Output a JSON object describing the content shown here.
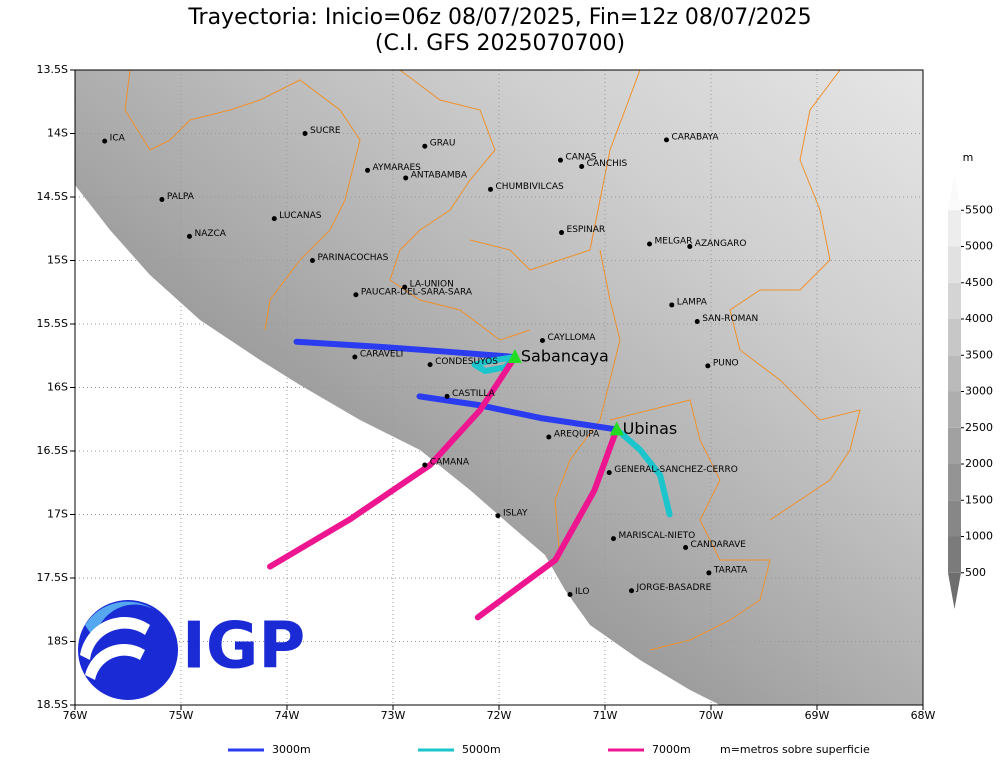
{
  "title": "Trayectoria: Inicio=06z 08/07/2025, Fin=12z 08/07/2025",
  "subtitle": "(C.I. GFS 2025070700)",
  "map": {
    "xlim": [
      -76,
      -68
    ],
    "ylim": [
      -18.5,
      -13.5
    ],
    "xticks": [
      {
        "value": -76,
        "label": "76W"
      },
      {
        "value": -75,
        "label": "75W"
      },
      {
        "value": -74,
        "label": "74W"
      },
      {
        "value": -73,
        "label": "73W"
      },
      {
        "value": -72,
        "label": "72W"
      },
      {
        "value": -71,
        "label": "71W"
      },
      {
        "value": -70,
        "label": "70W"
      },
      {
        "value": -69,
        "label": "69W"
      },
      {
        "value": -68,
        "label": "68W"
      }
    ],
    "yticks": [
      {
        "value": -13.5,
        "label": "13.5S"
      },
      {
        "value": -14,
        "label": "14S"
      },
      {
        "value": -14.5,
        "label": "14.5S"
      },
      {
        "value": -15,
        "label": "15S"
      },
      {
        "value": -15.5,
        "label": "15.5S"
      },
      {
        "value": -16,
        "label": "16S"
      },
      {
        "value": -16.5,
        "label": "16.5S"
      },
      {
        "value": -17,
        "label": "17S"
      },
      {
        "value": -17.5,
        "label": "17.5S"
      },
      {
        "value": -18,
        "label": "18S"
      },
      {
        "value": -18.5,
        "label": "18.5S"
      }
    ],
    "places": [
      {
        "name": "ICA",
        "lon": -75.72,
        "lat": -14.06
      },
      {
        "name": "SUCRE",
        "lon": -73.83,
        "lat": -14.0
      },
      {
        "name": "GRAU",
        "lon": -72.7,
        "lat": -14.1
      },
      {
        "name": "AYMARAES",
        "lon": -73.24,
        "lat": -14.29
      },
      {
        "name": "ANTABAMBA",
        "lon": -72.88,
        "lat": -14.35
      },
      {
        "name": "CANAS",
        "lon": -71.42,
        "lat": -14.21
      },
      {
        "name": "CANCHIS",
        "lon": -71.22,
        "lat": -14.26
      },
      {
        "name": "CARABAYA",
        "lon": -70.42,
        "lat": -14.05
      },
      {
        "name": "CHUMBIVILCAS",
        "lon": -72.08,
        "lat": -14.44
      },
      {
        "name": "PALPA",
        "lon": -75.18,
        "lat": -14.52
      },
      {
        "name": "LUCANAS",
        "lon": -74.12,
        "lat": -14.67
      },
      {
        "name": "NAZCA",
        "lon": -74.92,
        "lat": -14.81
      },
      {
        "name": "ESPINAR",
        "lon": -71.41,
        "lat": -14.78
      },
      {
        "name": "MELGAR",
        "lon": -70.58,
        "lat": -14.87
      },
      {
        "name": "AZANGARO",
        "lon": -70.2,
        "lat": -14.89
      },
      {
        "name": "PARINACOCHAS",
        "lon": -73.76,
        "lat": -15.0
      },
      {
        "name": "LA-UNION",
        "lon": -72.89,
        "lat": -15.21
      },
      {
        "name": "PAUCAR-DEL-SARA-SARA",
        "lon": -73.35,
        "lat": -15.27
      },
      {
        "name": "LAMPA",
        "lon": -70.37,
        "lat": -15.35
      },
      {
        "name": "SAN-ROMAN",
        "lon": -70.13,
        "lat": -15.48
      },
      {
        "name": "CAYLLOMA",
        "lon": -71.59,
        "lat": -15.63
      },
      {
        "name": "CARAVELI",
        "lon": -73.36,
        "lat": -15.76
      },
      {
        "name": "CONDESUYOS",
        "lon": -72.65,
        "lat": -15.82
      },
      {
        "name": "PUNO",
        "lon": -70.03,
        "lat": -15.83
      },
      {
        "name": "CASTILLA",
        "lon": -72.49,
        "lat": -16.07
      },
      {
        "name": "AREQUIPA",
        "lon": -71.53,
        "lat": -16.39
      },
      {
        "name": "CAMANA",
        "lon": -72.7,
        "lat": -16.61
      },
      {
        "name": "GENERAL-SANCHEZ-CERRO",
        "lon": -70.96,
        "lat": -16.67
      },
      {
        "name": "ISLAY",
        "lon": -72.01,
        "lat": -17.01
      },
      {
        "name": "MARISCAL-NIETO",
        "lon": -70.92,
        "lat": -17.19
      },
      {
        "name": "CANDARAVE",
        "lon": -70.24,
        "lat": -17.26
      },
      {
        "name": "TARATA",
        "lon": -70.02,
        "lat": -17.46
      },
      {
        "name": "ILO",
        "lon": -71.33,
        "lat": -17.63
      },
      {
        "name": "JORGE-BASADRE",
        "lon": -70.75,
        "lat": -17.6
      }
    ],
    "volcanoes": [
      {
        "name": "Sabancaya",
        "lon": -71.85,
        "lat": -15.76
      },
      {
        "name": "Ubinas",
        "lon": -70.89,
        "lat": -16.33
      }
    ],
    "series": [
      {
        "name": "3000m",
        "color": "#2b3cf0",
        "lines": [
          {
            "x": [
              -71.85,
              -72.46,
              -73.12,
              -73.91
            ],
            "y": [
              -15.76,
              -15.72,
              -15.68,
              -15.64
            ]
          },
          {
            "x": [
              -70.89,
              -71.61,
              -72.18,
              -72.75
            ],
            "y": [
              -16.33,
              -16.24,
              -16.14,
              -16.07
            ]
          }
        ]
      },
      {
        "name": "5000m",
        "color": "#1cc4cc",
        "lines": [
          {
            "x": [
              -71.85,
              -71.94,
              -72.13,
              -72.23,
              -72.08,
              -71.85
            ],
            "y": [
              -15.76,
              -15.84,
              -15.87,
              -15.82,
              -15.79,
              -15.76
            ]
          },
          {
            "x": [
              -70.89,
              -70.67,
              -70.48,
              -70.39
            ],
            "y": [
              -16.33,
              -16.49,
              -16.69,
              -17.0
            ]
          }
        ]
      },
      {
        "name": "7000m",
        "color": "#ee1590",
        "lines": [
          {
            "x": [
              -71.85,
              -72.18,
              -72.65,
              -73.41,
              -74.16
            ],
            "y": [
              -15.76,
              -16.18,
              -16.61,
              -17.04,
              -17.41
            ]
          },
          {
            "x": [
              -70.89,
              -71.1,
              -71.47,
              -72.2
            ],
            "y": [
              -16.33,
              -16.81,
              -17.36,
              -17.81
            ]
          }
        ]
      }
    ]
  },
  "colorbar": {
    "unit": "m",
    "clim": [
      0,
      6000
    ],
    "ticks": [
      500,
      1000,
      1500,
      2000,
      2500,
      3000,
      3500,
      4000,
      4500,
      5000,
      5500
    ]
  },
  "note": "m=metros sobre superficie",
  "logo": "IGP"
}
